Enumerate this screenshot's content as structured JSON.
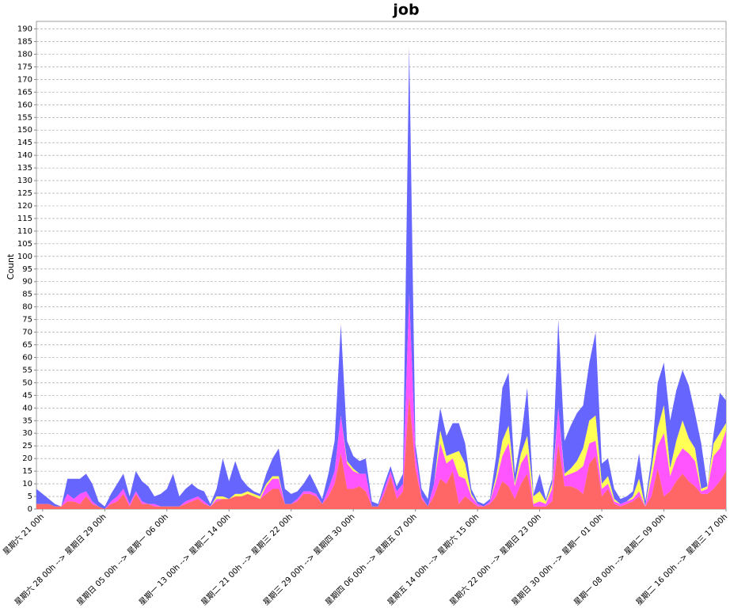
{
  "chart_data": {
    "type": "stacked-area",
    "title": "job",
    "y_label": "Count",
    "categories": [
      null,
      "星期六 21 00h",
      null,
      null,
      null,
      null,
      null,
      null,
      null,
      null,
      null,
      "星期六 28 00h --> 星期日 29 00h",
      null,
      null,
      null,
      null,
      null,
      null,
      null,
      null,
      null,
      "星期日 05 00h --> 星期一 06 00h",
      null,
      null,
      null,
      null,
      null,
      null,
      null,
      null,
      null,
      "星期一 13 00h --> 星期二 14 00h",
      null,
      null,
      null,
      null,
      null,
      null,
      null,
      null,
      null,
      "星期二 21 00h --> 星期三 22 00h",
      null,
      null,
      null,
      null,
      null,
      null,
      null,
      null,
      null,
      "星期三 29 00h --> 星期四 30 00h",
      null,
      null,
      null,
      null,
      null,
      null,
      null,
      null,
      null,
      "星期四 06 00h --> 星期五 07 00h",
      null,
      null,
      null,
      null,
      null,
      null,
      null,
      null,
      null,
      "星期五 14 00h --> 星期六 15 00h",
      null,
      null,
      null,
      null,
      null,
      null,
      null,
      null,
      null,
      "星期六 22 00h --> 星期日 23 00h",
      null,
      null,
      null,
      null,
      null,
      null,
      null,
      null,
      null,
      "星期日 30 00h --> 星期一 01 00h",
      null,
      null,
      null,
      null,
      null,
      null,
      null,
      null,
      null,
      "星期一 08 00h --> 星期二 09 00h",
      null,
      null,
      null,
      null,
      null,
      null,
      null,
      null,
      null,
      "星期二 16 00h --> 星期三 17 00h"
    ],
    "series": [
      {
        "color": "#ff6666",
        "values": [
          2,
          2,
          2,
          1,
          1,
          3,
          3,
          2,
          5,
          2,
          1,
          0,
          2,
          3,
          6,
          1,
          6,
          2,
          2,
          1,
          1,
          1,
          1,
          1,
          2,
          3,
          4,
          2,
          1,
          3,
          4,
          4,
          5,
          5,
          6,
          5,
          4,
          6,
          8,
          8,
          2,
          2,
          3,
          6,
          6,
          5,
          2,
          5,
          10,
          22,
          8,
          8,
          9,
          7,
          1,
          1,
          6,
          13,
          4,
          7,
          45,
          16,
          4,
          1,
          5,
          12,
          10,
          15,
          2,
          5,
          3,
          1,
          1,
          2,
          5,
          11,
          9,
          4,
          10,
          14,
          1,
          1,
          1,
          3,
          26,
          9,
          9,
          8,
          6,
          18,
          21,
          5,
          8,
          2,
          1,
          2,
          3,
          5,
          1,
          5,
          16,
          5,
          7,
          11,
          14,
          11,
          9,
          6,
          6,
          8,
          11,
          15
        ]
      },
      {
        "color": "#ff55ff",
        "values": [
          0,
          0,
          0,
          0,
          0,
          3,
          1,
          4,
          2,
          1,
          0,
          0,
          1,
          2,
          2,
          1,
          1,
          1,
          0,
          1,
          0,
          0,
          0,
          0,
          1,
          1,
          1,
          1,
          0,
          1,
          0,
          0,
          0,
          0,
          0,
          0,
          0,
          3,
          4,
          4,
          0,
          0,
          1,
          1,
          1,
          1,
          0,
          3,
          5,
          15,
          10,
          7,
          5,
          7,
          0,
          0,
          2,
          2,
          3,
          3,
          40,
          6,
          1,
          0,
          5,
          14,
          8,
          5,
          11,
          7,
          2,
          1,
          0,
          1,
          6,
          10,
          17,
          5,
          8,
          8,
          1,
          2,
          1,
          5,
          14,
          4,
          5,
          7,
          11,
          8,
          6,
          3,
          2,
          1,
          1,
          1,
          1,
          2,
          0,
          7,
          9,
          25,
          6,
          9,
          10,
          11,
          10,
          1,
          2,
          13,
          13,
          16
        ]
      },
      {
        "color": "#ffff55",
        "values": [
          0,
          0,
          0,
          0,
          0,
          0,
          0,
          0,
          0,
          0,
          0,
          0,
          0,
          0,
          0,
          0,
          0,
          0,
          0,
          0,
          0,
          0,
          0,
          0,
          0,
          0,
          0,
          0,
          0,
          1,
          1,
          0,
          1,
          1,
          1,
          1,
          1,
          1,
          1,
          1,
          0,
          0,
          0,
          0,
          0,
          0,
          0,
          0,
          0,
          0,
          1,
          1,
          0,
          0,
          0,
          0,
          0,
          0,
          0,
          0,
          0,
          0,
          0,
          0,
          0,
          5,
          3,
          2,
          10,
          6,
          1,
          0,
          0,
          0,
          2,
          6,
          7,
          1,
          4,
          7,
          3,
          4,
          1,
          2,
          0,
          1,
          2,
          4,
          7,
          9,
          10,
          2,
          3,
          1,
          0,
          0,
          1,
          5,
          0,
          4,
          7,
          11,
          3,
          7,
          11,
          6,
          5,
          1,
          1,
          5,
          6,
          3
        ]
      },
      {
        "color": "#6666ff",
        "values": [
          6,
          4,
          2,
          1,
          0,
          6,
          8,
          6,
          7,
          7,
          2,
          1,
          3,
          5,
          6,
          3,
          8,
          8,
          7,
          3,
          5,
          7,
          13,
          4,
          5,
          6,
          3,
          4,
          1,
          3,
          15,
          7,
          13,
          6,
          2,
          1,
          1,
          4,
          7,
          11,
          6,
          4,
          3,
          3,
          7,
          3,
          2,
          6,
          12,
          36,
          8,
          5,
          5,
          6,
          2,
          1,
          2,
          2,
          2,
          4,
          98,
          4,
          3,
          3,
          12,
          9,
          8,
          12,
          11,
          8,
          2,
          1,
          1,
          1,
          8,
          21,
          21,
          4,
          6,
          19,
          1,
          7,
          1,
          2,
          35,
          13,
          17,
          19,
          17,
          23,
          33,
          8,
          7,
          4,
          2,
          2,
          2,
          10,
          2,
          4,
          18,
          17,
          19,
          20,
          20,
          21,
          14,
          18,
          0,
          4,
          16,
          9
        ]
      }
    ],
    "ylim": [
      0,
      193
    ],
    "yticks": [
      0,
      5,
      10,
      15,
      20,
      25,
      30,
      35,
      40,
      45,
      50,
      55,
      60,
      65,
      70,
      75,
      80,
      85,
      90,
      95,
      100,
      105,
      110,
      115,
      120,
      125,
      130,
      135,
      140,
      145,
      150,
      155,
      160,
      165,
      170,
      175,
      180,
      185,
      190
    ],
    "grid": true
  }
}
